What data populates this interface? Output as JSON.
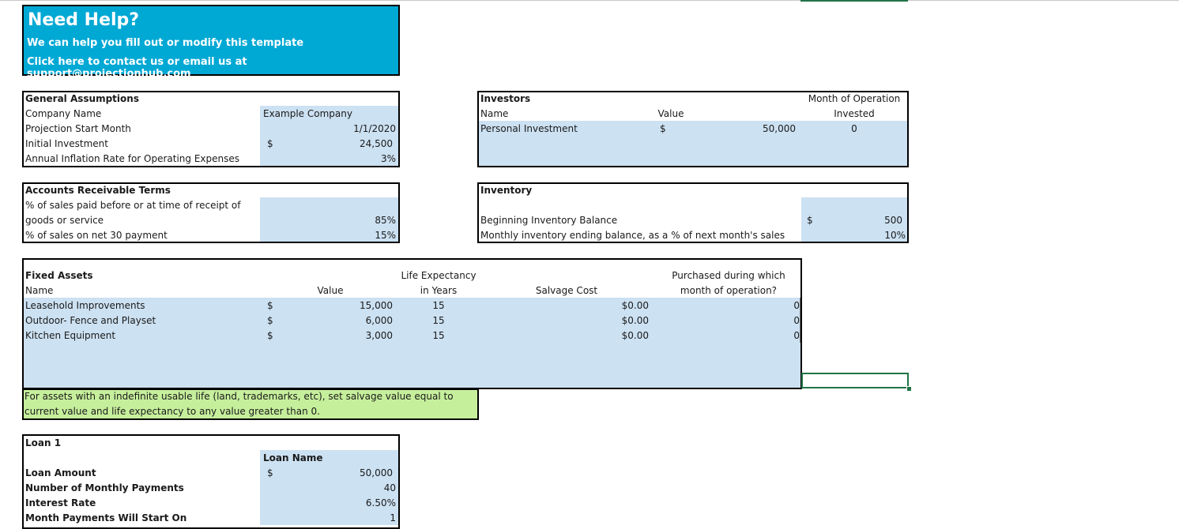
{
  "help": {
    "title": "Need Help?",
    "line1": "We can help you fill out or modify this template",
    "line2": "Click here to contact us or email us at support@projectionhub.com"
  },
  "general": {
    "title": "General Assumptions",
    "company_label": "Company Name",
    "company_value": "Example Company",
    "start_label": "Projection Start Month",
    "start_value": "1/1/2020",
    "invest_label": "Initial Investment",
    "invest_currency": "$",
    "invest_value": "24,500",
    "inflation_label": "Annual Inflation Rate for Operating Expenses",
    "inflation_value": "3%"
  },
  "investors": {
    "title": "Investors",
    "name_header": "Name",
    "value_header": "Value",
    "month_header_1": "Month of Operation",
    "month_header_2": "Invested",
    "rows": [
      {
        "name": "Personal Investment",
        "currency": "$",
        "value": "50,000",
        "month": "0"
      }
    ]
  },
  "ar": {
    "title": "Accounts Receivable Terms",
    "row1_label_a": "% of sales paid before or at time of receipt of",
    "row1_label_b": "goods or service",
    "row1_value": "85%",
    "row2_label": "% of sales on net 30 payment",
    "row2_value": "15%"
  },
  "inventory": {
    "title": "Inventory",
    "begin_label": "Beginning Inventory Balance",
    "begin_currency": "$",
    "begin_value": "500",
    "monthly_label": "Monthly inventory ending balance, as a % of next month's sales",
    "monthly_value": "10%"
  },
  "fixed_assets": {
    "title": "Fixed Assets",
    "name_header": "Name",
    "value_header": "Value",
    "life_header_1": "Life Expectancy",
    "life_header_2": "in Years",
    "salvage_header": "Salvage Cost",
    "purchase_header_1": "Purchased during which",
    "purchase_header_2": "month of operation?",
    "rows": [
      {
        "name": "Leasehold Improvements",
        "currency": "$",
        "value": "15,000",
        "life": "15",
        "salvage": "$0.00",
        "month": "0"
      },
      {
        "name": "Outdoor- Fence and Playset",
        "currency": "$",
        "value": "6,000",
        "life": "15",
        "salvage": "$0.00",
        "month": "0"
      },
      {
        "name": "Kitchen Equipment",
        "currency": "$",
        "value": "3,000",
        "life": "15",
        "salvage": "$0.00",
        "month": "0"
      }
    ],
    "note_1": "For assets with an indefinite usable life (land, trademarks, etc), set salvage value equal to",
    "note_2": "current value and life expectancy to any value greater than 0."
  },
  "loan": {
    "title": "Loan 1",
    "name_header": "Loan Name",
    "amount_label": "Loan Amount",
    "amount_currency": "$",
    "amount_value": "50,000",
    "payments_label": "Number of Monthly Payments",
    "payments_value": "40",
    "rate_label": "Interest Rate",
    "rate_value": "6.50%",
    "start_label": "Month Payments Will Start On",
    "start_value": "1"
  }
}
